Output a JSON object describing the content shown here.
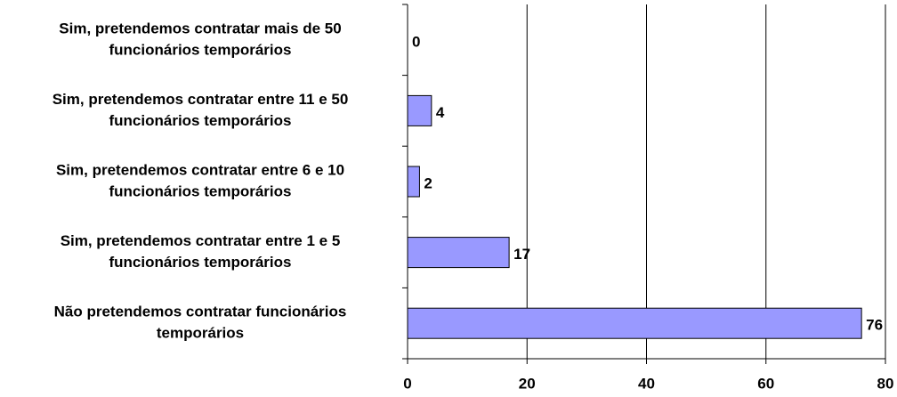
{
  "chart_data": {
    "type": "bar",
    "orientation": "horizontal",
    "categories": [
      [
        "Sim, pretendemos contratar mais de 50",
        "funcionários temporários"
      ],
      [
        "Sim, pretendemos contratar entre 11 e 50",
        "funcionários temporários"
      ],
      [
        "Sim, pretendemos contratar entre 6 e 10",
        "funcionários temporários"
      ],
      [
        "Sim, pretendemos contratar entre 1 e 5",
        "funcionários temporários"
      ],
      [
        "Não pretendemos contratar funcionários",
        "temporários"
      ]
    ],
    "values": [
      0,
      4,
      2,
      17,
      76
    ],
    "color": "#9999ff",
    "xlim": [
      0,
      80
    ],
    "xticks": [
      0,
      20,
      40,
      60,
      80
    ],
    "grid": true
  }
}
